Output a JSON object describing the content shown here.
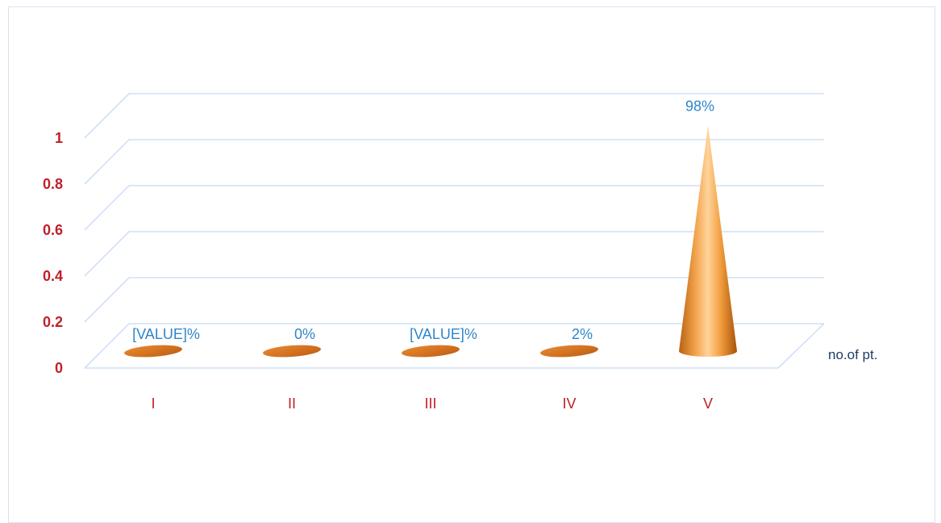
{
  "chart_data": {
    "type": "bar",
    "bar_shape": "cone",
    "view": "3d",
    "categories": [
      "I",
      "II",
      "III",
      "IV",
      "V"
    ],
    "series": [
      {
        "name": "no.of pt.",
        "values": [
          0,
          0,
          0,
          0.02,
          0.98
        ],
        "data_labels": [
          "[VALUE]%",
          "0%",
          "[VALUE]%",
          "2%",
          "98%"
        ]
      }
    ],
    "y_ticks": [
      "0",
      "0.2",
      "0.4",
      "0.6",
      "0.8",
      "1"
    ],
    "ylim": [
      0,
      1
    ],
    "grid": true,
    "legend_position": "right",
    "colors": {
      "series": "#f39a35",
      "series_dark": "#b85f12",
      "tick_labels": "#c0202a",
      "data_labels": "#2f86c8",
      "legend_text": "#1f3b64",
      "grid": "#cfe0f6"
    }
  }
}
